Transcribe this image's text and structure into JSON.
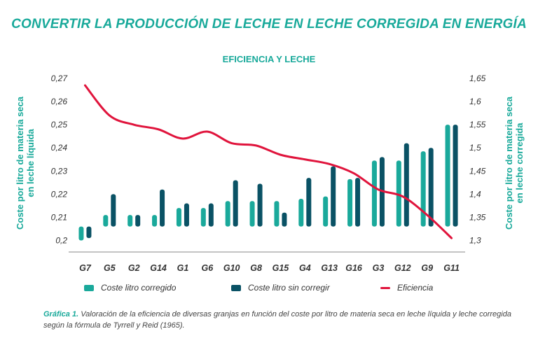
{
  "title": "CONVERTIR LA PRODUCCIÓN DE LECHE EN LECHE CORREGIDA EN ENERGÍA",
  "caption": {
    "label": "Gráfica 1.",
    "text": "Valoración de la eficiencia de diversas granjas en función del coste por litro de materia seca en leche líquida y leche corregida según la fórmula de Tyrrell y Reid (1965)."
  },
  "colors": {
    "corregido": "#1aa99b",
    "sin_corregir": "#0a5265",
    "eficiencia": "#e0143c",
    "title": "#18a99a"
  },
  "chart_data": {
    "type": "bar",
    "title": "EFICIENCIA Y LECHE",
    "ylabel_left": [
      "Coste por litro de materia seca",
      "en leche líquida"
    ],
    "ylabel_right": [
      "Coste por litro de materia seca",
      "en leche corregida"
    ],
    "categories": [
      "G7",
      "G5",
      "G2",
      "G14",
      "G1",
      "G6",
      "G10",
      "G8",
      "G15",
      "G4",
      "G13",
      "G16",
      "G3",
      "G12",
      "G9",
      "G11"
    ],
    "left_axis": {
      "min": 0.195,
      "max": 0.27,
      "ticks": [
        "0,2",
        "0,21",
        "0,22",
        "0,23",
        "0,24",
        "0,25",
        "0,26",
        "0,27"
      ],
      "tick_values": [
        0.2,
        0.21,
        0.22,
        0.23,
        0.24,
        0.25,
        0.26,
        0.27
      ]
    },
    "right_axis": {
      "min": 1.275,
      "max": 1.65,
      "ticks": [
        "1,3",
        "1,35",
        "1,4",
        "1,45",
        "1,5",
        "1,55",
        "1,6",
        "1,65"
      ],
      "tick_values": [
        1.3,
        1.35,
        1.4,
        1.45,
        1.5,
        1.55,
        1.6,
        1.65
      ]
    },
    "bar_bottom": {
      "left_axis": 0.206,
      "right_axis": 1.298
    },
    "series": [
      {
        "name": "Coste litro corregido",
        "axis": "left",
        "style": "bar",
        "values": [
          0.2,
          0.211,
          0.211,
          0.211,
          0.214,
          0.214,
          0.217,
          0.217,
          0.217,
          0.218,
          0.219,
          0.2265,
          0.2345,
          0.2345,
          0.2385,
          0.25
        ]
      },
      {
        "name": "Coste litro sin corregir",
        "axis": "left",
        "style": "bar",
        "values": [
          0.201,
          0.22,
          0.211,
          0.222,
          0.216,
          0.216,
          0.226,
          0.2245,
          0.212,
          0.227,
          0.232,
          0.227,
          0.236,
          0.242,
          0.24,
          0.25
        ]
      },
      {
        "name": "Eficiencia",
        "axis": "right",
        "style": "line",
        "values": [
          1.635,
          1.57,
          1.55,
          1.54,
          1.52,
          1.535,
          1.51,
          1.505,
          1.485,
          1.475,
          1.465,
          1.445,
          1.41,
          1.395,
          1.355,
          1.305
        ]
      }
    ],
    "legend": "bottom",
    "grid": false
  }
}
